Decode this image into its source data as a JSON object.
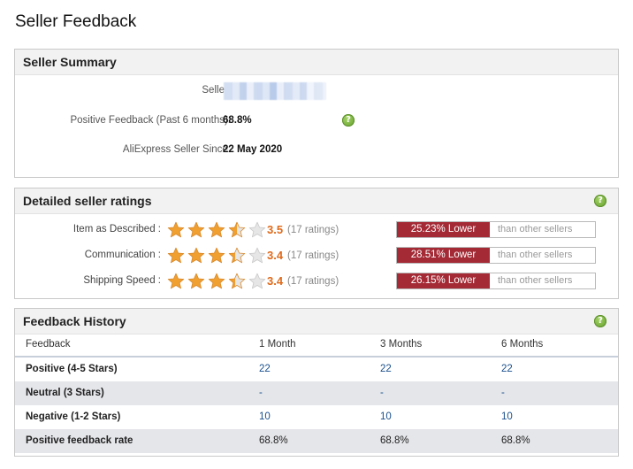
{
  "page": {
    "title": "Seller Feedback"
  },
  "summary": {
    "title": "Seller Summary",
    "seller_label": "Seller:",
    "positive_label": "Positive Feedback (Past 6 months):",
    "positive_value": "68.8%",
    "since_label": "AliExpress Seller Since:",
    "since_value": "22 May 2020",
    "help_icon": "?"
  },
  "ratings": {
    "title": "Detailed seller ratings",
    "help_icon": "?",
    "colors": {
      "star": "#f0a030",
      "badge": "#a42a35",
      "score": "#e06a1b"
    },
    "items": [
      {
        "label": "Item as Described :",
        "score": "3.5",
        "stars": 3.5,
        "count": "(17 ratings)",
        "badge": "25.23% Lower",
        "compare": "than other sellers"
      },
      {
        "label": "Communication :",
        "score": "3.4",
        "stars": 3.4,
        "count": "(17 ratings)",
        "badge": "28.51% Lower",
        "compare": "than other sellers"
      },
      {
        "label": "Shipping Speed :",
        "score": "3.4",
        "stars": 3.4,
        "count": "(17 ratings)",
        "badge": "26.15% Lower",
        "compare": "than other sellers"
      }
    ]
  },
  "history": {
    "title": "Feedback History",
    "help_icon": "?",
    "columns": [
      "Feedback",
      "1 Month",
      "3 Months",
      "6 Months"
    ],
    "rows": [
      {
        "label": "Positive (4-5 Stars)",
        "values": [
          "22",
          "22",
          "22"
        ]
      },
      {
        "label": "Neutral (3 Stars)",
        "values": [
          "-",
          "-",
          "-"
        ]
      },
      {
        "label": "Negative (1-2 Stars)",
        "values": [
          "10",
          "10",
          "10"
        ]
      },
      {
        "label": "Positive feedback rate",
        "values": [
          "68.8%",
          "68.8%",
          "68.8%"
        ]
      }
    ]
  }
}
